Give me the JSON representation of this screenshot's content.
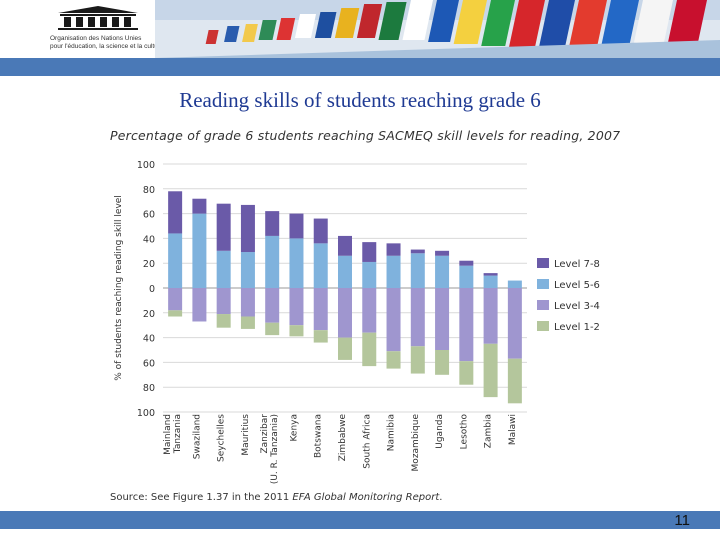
{
  "header": {
    "org_line1": "Organisation des Nations Unies",
    "org_line2": "pour l'éducation, la science et la culture"
  },
  "slide": {
    "title": "Reading skills of students reaching grade 6",
    "page_number": "11"
  },
  "colors": {
    "level_7_8": "#6a5aa8",
    "level_5_6": "#7fb2dd",
    "level_3_4": "#9f96cf",
    "level_1_2": "#b4c69c",
    "band": "#4a79b7",
    "title": "#1f3a93"
  },
  "chart_data": {
    "type": "bar",
    "title": "Percentage of grade 6 students reaching SACMEQ skill levels for reading, 2007",
    "ylabel": "% of students reaching reading skill level",
    "ylim": [
      -100,
      100
    ],
    "yticks": [
      100,
      80,
      60,
      40,
      20,
      0,
      20,
      40,
      60,
      80,
      100
    ],
    "stacked_diverging": true,
    "categories": [
      "Mainland Tanzania",
      "Swaziland",
      "Seychelles",
      "Mauritius",
      "Zanzibar (U. R. Tanzania)",
      "Kenya",
      "Botswana",
      "Zimbabwe",
      "South Africa",
      "Namibia",
      "Mozambique",
      "Uganda",
      "Lesotho",
      "Zambia",
      "Malawi"
    ],
    "category_labels": [
      [
        "Mainland",
        "Tanzania"
      ],
      [
        "Swaziland"
      ],
      [
        "Seychelles"
      ],
      [
        "Mauritius"
      ],
      [
        "Zanzibar",
        "(U. R. Tanzania)"
      ],
      [
        "Kenya"
      ],
      [
        "Botswana"
      ],
      [
        "Zimbabwe"
      ],
      [
        "South Africa"
      ],
      [
        "Namibia"
      ],
      [
        "Mozambique"
      ],
      [
        "Uganda"
      ],
      [
        "Lesotho"
      ],
      [
        "Zambia"
      ],
      [
        "Malawi"
      ]
    ],
    "series": [
      {
        "name": "Level 7-8",
        "direction": "up",
        "values": [
          34,
          12,
          38,
          38,
          20,
          20,
          20,
          16,
          16,
          10,
          3,
          4,
          4,
          2,
          0
        ]
      },
      {
        "name": "Level 5-6",
        "direction": "up",
        "values": [
          44,
          60,
          30,
          29,
          42,
          40,
          36,
          26,
          21,
          26,
          28,
          26,
          18,
          10,
          6
        ]
      },
      {
        "name": "Level 3-4",
        "direction": "down",
        "values": [
          18,
          27,
          21,
          23,
          28,
          30,
          34,
          40,
          36,
          51,
          47,
          50,
          59,
          45,
          57
        ]
      },
      {
        "name": "Level 1-2",
        "direction": "down",
        "values": [
          5,
          0,
          11,
          10,
          10,
          9,
          10,
          18,
          27,
          14,
          22,
          20,
          19,
          43,
          36
        ]
      }
    ],
    "legend": {
      "position": "right",
      "order": [
        "Level 7-8",
        "Level 5-6",
        "Level 3-4",
        "Level 1-2"
      ]
    },
    "grid": true,
    "source_prefix": "Source: See Figure 1.37 in the 2011 ",
    "source_italic": "EFA Global Monitoring Report",
    "source_suffix": "."
  }
}
